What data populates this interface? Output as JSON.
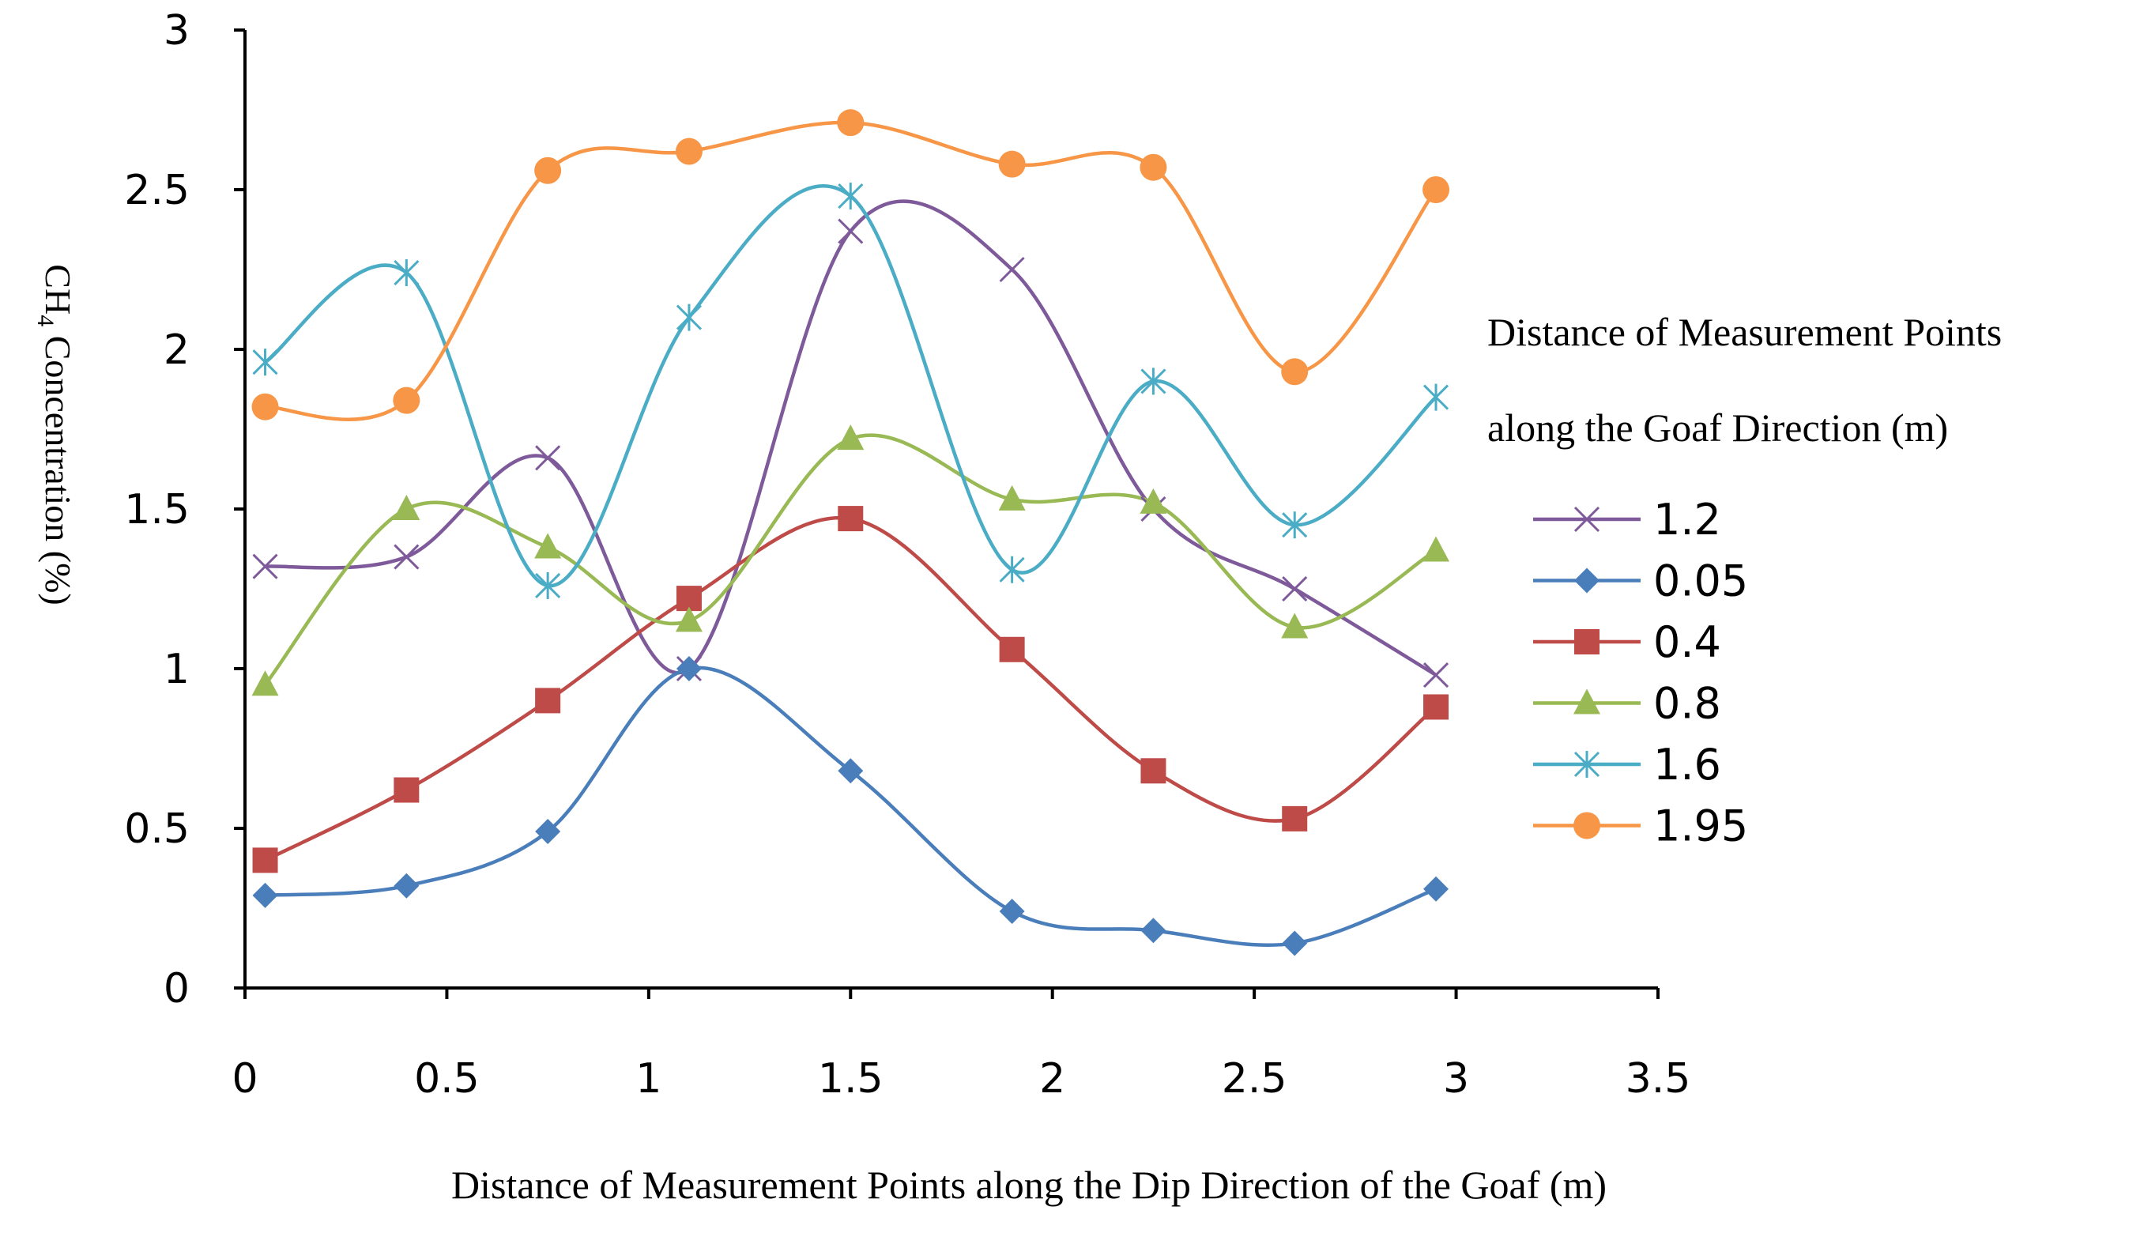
{
  "chart_data": {
    "type": "line",
    "title": "",
    "xlabel": "Distance of Measurement Points along the Dip Direction of the Goaf (m)",
    "ylabel": {
      "main": "CH",
      "sub": "4",
      "rest": " Concentration (%)"
    },
    "xlim": [
      0,
      3.5
    ],
    "ylim": [
      0,
      3
    ],
    "xticks": [
      "0",
      "0.5",
      "1",
      "1.5",
      "2",
      "2.5",
      "3",
      "3.5"
    ],
    "yticks": [
      "0",
      "0.5",
      "1",
      "1.5",
      "2",
      "2.5",
      "3"
    ],
    "x": [
      0.05,
      0.4,
      0.75,
      1.1,
      1.5,
      1.9,
      2.25,
      2.6,
      2.95
    ],
    "legend_title": [
      "Distance of Measurement Points",
      "along the Goaf Direction (m)"
    ],
    "series": [
      {
        "name": "1.2",
        "color": "#7e5a9b",
        "marker": "x",
        "values": [
          1.32,
          1.35,
          1.66,
          1.0,
          2.37,
          2.25,
          1.5,
          1.25,
          0.98
        ]
      },
      {
        "name": "0.05",
        "color": "#4a7ebb",
        "marker": "diamond",
        "values": [
          0.29,
          0.32,
          0.49,
          1.0,
          0.68,
          0.24,
          0.18,
          0.14,
          0.31
        ]
      },
      {
        "name": "0.4",
        "color": "#be4b48",
        "marker": "square",
        "values": [
          0.4,
          0.62,
          0.9,
          1.22,
          1.47,
          1.06,
          0.68,
          0.53,
          0.88
        ]
      },
      {
        "name": "0.8",
        "color": "#98b954",
        "marker": "triangle",
        "values": [
          0.95,
          1.5,
          1.38,
          1.15,
          1.72,
          1.53,
          1.52,
          1.13,
          1.37
        ]
      },
      {
        "name": "1.6",
        "color": "#4bacc6",
        "marker": "asterisk",
        "values": [
          1.96,
          2.24,
          1.26,
          2.1,
          2.48,
          1.31,
          1.9,
          1.45,
          1.85
        ]
      },
      {
        "name": "1.95",
        "color": "#f79646",
        "marker": "circle",
        "values": [
          1.82,
          1.84,
          2.56,
          2.62,
          2.71,
          2.58,
          2.57,
          1.93,
          2.5
        ]
      }
    ]
  }
}
